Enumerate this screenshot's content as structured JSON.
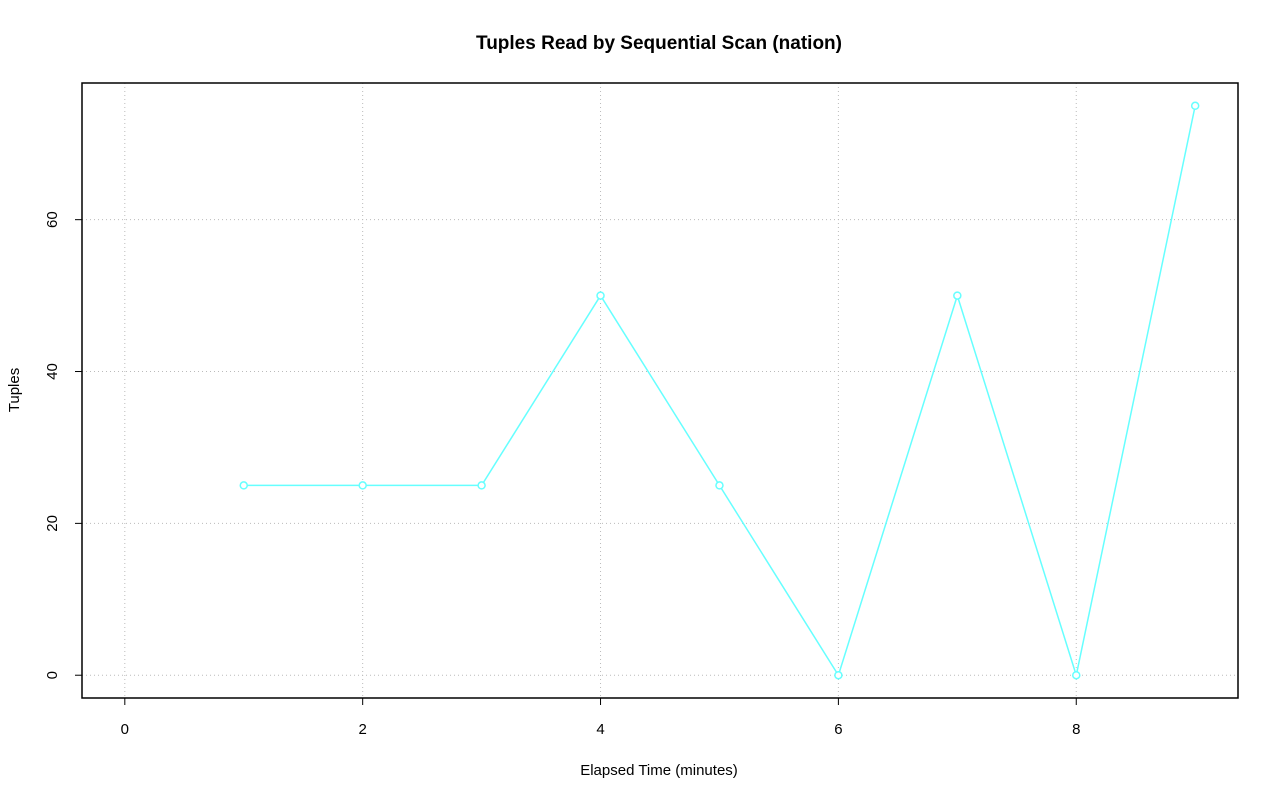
{
  "chart_data": {
    "type": "line",
    "title": "Tuples Read by Sequential Scan (nation)",
    "x_label": "Elapsed Time (minutes)",
    "y_label": "Tuples",
    "x": [
      1,
      2,
      3,
      4,
      5,
      6,
      7,
      8,
      9
    ],
    "values": [
      25,
      25,
      25,
      50,
      25,
      0,
      50,
      0,
      75
    ],
    "color": "#66ffff",
    "xlim": [
      -0.36,
      9.36
    ],
    "xticks": [
      0,
      2,
      4,
      6,
      8
    ],
    "ylim": [
      -3,
      78
    ],
    "yticks": [
      0,
      20,
      40,
      60
    ],
    "grid": true
  }
}
